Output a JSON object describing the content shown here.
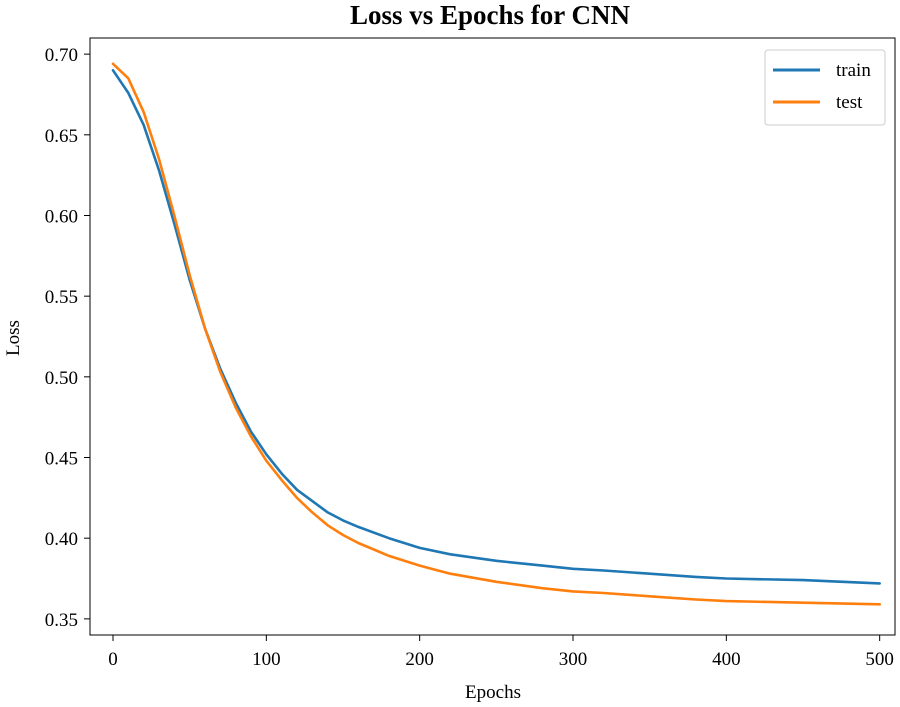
{
  "chart_data": {
    "type": "line",
    "title": "Loss vs Epochs for CNN",
    "xlabel": "Epochs",
    "ylabel": "Loss",
    "xlim": [
      -15,
      510
    ],
    "ylim": [
      0.34,
      0.71
    ],
    "xticks": [
      0,
      100,
      200,
      300,
      400,
      500
    ],
    "yticks": [
      0.35,
      0.4,
      0.45,
      0.5,
      0.55,
      0.6,
      0.65,
      0.7
    ],
    "ytick_labels": [
      "0.35",
      "0.40",
      "0.45",
      "0.50",
      "0.55",
      "0.60",
      "0.65",
      "0.70"
    ],
    "grid": false,
    "legend_position": "top-right",
    "series": [
      {
        "name": "train",
        "color": "#1f77b4",
        "x": [
          0,
          10,
          20,
          30,
          40,
          50,
          60,
          70,
          80,
          90,
          100,
          110,
          120,
          130,
          140,
          150,
          160,
          180,
          200,
          220,
          250,
          280,
          300,
          320,
          350,
          380,
          400,
          450,
          500
        ],
        "values": [
          0.69,
          0.676,
          0.656,
          0.628,
          0.595,
          0.56,
          0.53,
          0.505,
          0.484,
          0.466,
          0.452,
          0.44,
          0.43,
          0.423,
          0.416,
          0.411,
          0.407,
          0.4,
          0.394,
          0.39,
          0.386,
          0.383,
          0.381,
          0.38,
          0.378,
          0.376,
          0.375,
          0.374,
          0.372
        ]
      },
      {
        "name": "test",
        "color": "#ff7f0e",
        "x": [
          0,
          10,
          20,
          30,
          40,
          50,
          60,
          70,
          80,
          90,
          100,
          110,
          120,
          130,
          140,
          150,
          160,
          180,
          200,
          220,
          250,
          280,
          300,
          320,
          350,
          380,
          400,
          450,
          500
        ],
        "values": [
          0.694,
          0.685,
          0.664,
          0.635,
          0.6,
          0.563,
          0.53,
          0.503,
          0.481,
          0.463,
          0.448,
          0.436,
          0.425,
          0.416,
          0.408,
          0.402,
          0.397,
          0.389,
          0.383,
          0.378,
          0.373,
          0.369,
          0.367,
          0.366,
          0.364,
          0.362,
          0.361,
          0.36,
          0.359
        ]
      }
    ]
  }
}
